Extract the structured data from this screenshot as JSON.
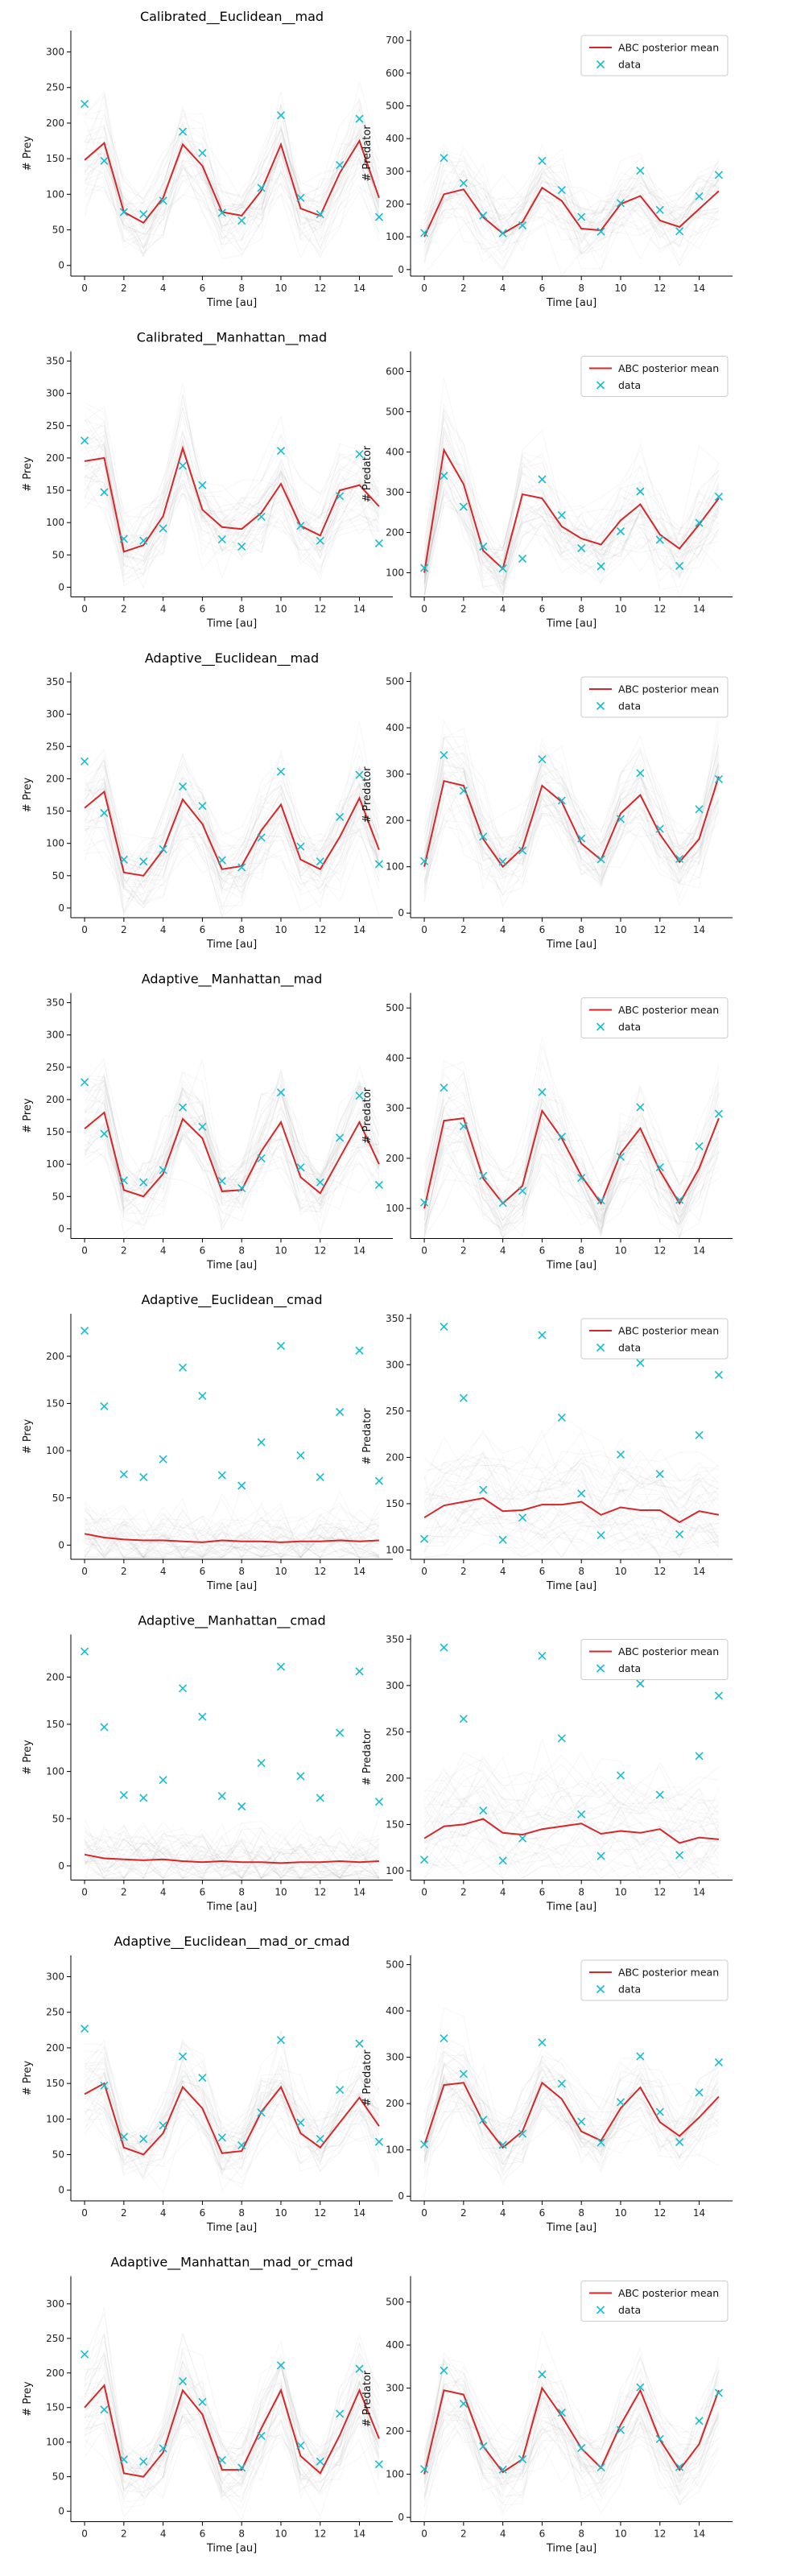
{
  "chart_data": {
    "type": "line",
    "x": [
      0,
      1,
      2,
      3,
      4,
      5,
      6,
      7,
      8,
      9,
      10,
      11,
      12,
      13,
      14,
      15
    ],
    "data_prey": [
      227,
      147,
      75,
      72,
      91,
      188,
      158,
      74,
      63,
      109,
      211,
      95,
      72,
      141,
      206,
      68
    ],
    "data_predator": [
      112,
      341,
      264,
      165,
      111,
      135,
      332,
      243,
      161,
      116,
      203,
      302,
      182,
      117,
      224,
      289
    ],
    "xlabel": "Time [au]",
    "xticks": [
      0,
      2,
      4,
      6,
      8,
      10,
      12,
      14
    ],
    "prey_ylabel": "# Prey",
    "predator_ylabel": "# Predator",
    "legend": {
      "mean_label": "ABC posterior mean",
      "data_label": "data",
      "placement": "upper-right"
    },
    "colors": {
      "mean": "#d62728",
      "data": "#17becf",
      "ensemble": "#9e9e9e",
      "axis": "#000000"
    },
    "grid": false,
    "panels": [
      {
        "title": "Calibrated__Euclidean__mad",
        "prey": {
          "ylim": [
            -15,
            330
          ],
          "yticks": [
            0,
            50,
            100,
            150,
            200,
            250,
            300
          ],
          "mean": [
            148,
            172,
            75,
            60,
            95,
            170,
            140,
            75,
            70,
            105,
            170,
            80,
            70,
            130,
            175,
            95
          ]
        },
        "predator": {
          "ylim": [
            -20,
            730
          ],
          "yticks": [
            0,
            100,
            200,
            300,
            400,
            500,
            600,
            700
          ],
          "mean": [
            100,
            230,
            245,
            160,
            110,
            145,
            250,
            210,
            125,
            120,
            200,
            225,
            150,
            130,
            185,
            240
          ]
        }
      },
      {
        "title": "Calibrated__Manhattan__mad",
        "prey": {
          "ylim": [
            -15,
            365
          ],
          "yticks": [
            0,
            50,
            100,
            150,
            200,
            250,
            300,
            350
          ],
          "mean": [
            195,
            200,
            55,
            65,
            110,
            215,
            120,
            93,
            90,
            115,
            160,
            95,
            80,
            150,
            158,
            125
          ]
        },
        "predator": {
          "ylim": [
            40,
            650
          ],
          "yticks": [
            100,
            200,
            300,
            400,
            500,
            600
          ],
          "mean": [
            100,
            405,
            320,
            155,
            110,
            295,
            285,
            215,
            185,
            170,
            230,
            270,
            195,
            160,
            220,
            285
          ]
        }
      },
      {
        "title": "Adaptive__Euclidean__mad",
        "prey": {
          "ylim": [
            -15,
            365
          ],
          "yticks": [
            0,
            50,
            100,
            150,
            200,
            250,
            300,
            350
          ],
          "mean": [
            155,
            180,
            55,
            50,
            90,
            168,
            130,
            60,
            65,
            120,
            160,
            75,
            60,
            110,
            170,
            90
          ]
        },
        "predator": {
          "ylim": [
            -10,
            520
          ],
          "yticks": [
            0,
            100,
            200,
            300,
            400,
            500
          ],
          "mean": [
            100,
            285,
            275,
            160,
            100,
            140,
            275,
            240,
            150,
            115,
            215,
            255,
            170,
            110,
            160,
            295
          ]
        }
      },
      {
        "title": "Adaptive__Manhattan__mad",
        "prey": {
          "ylim": [
            -15,
            365
          ],
          "yticks": [
            0,
            50,
            100,
            150,
            200,
            250,
            300,
            350
          ],
          "mean": [
            155,
            180,
            60,
            50,
            85,
            170,
            140,
            58,
            60,
            120,
            165,
            80,
            55,
            110,
            165,
            100
          ]
        },
        "predator": {
          "ylim": [
            40,
            530
          ],
          "yticks": [
            100,
            200,
            300,
            400,
            500
          ],
          "mean": [
            100,
            275,
            280,
            160,
            110,
            145,
            295,
            240,
            165,
            110,
            210,
            260,
            175,
            110,
            180,
            280
          ]
        }
      },
      {
        "title": "Adaptive__Euclidean__cmad",
        "prey": {
          "ylim": [
            -15,
            245
          ],
          "yticks": [
            0,
            50,
            100,
            150,
            200
          ],
          "mean": [
            12,
            8,
            6,
            5,
            5,
            4,
            3,
            5,
            4,
            4,
            3,
            4,
            4,
            5,
            4,
            5
          ]
        },
        "predator": {
          "ylim": [
            90,
            355
          ],
          "yticks": [
            100,
            150,
            200,
            250,
            300,
            350
          ],
          "mean": [
            135,
            148,
            152,
            156,
            142,
            143,
            149,
            149,
            152,
            138,
            146,
            143,
            143,
            130,
            142,
            138
          ]
        }
      },
      {
        "title": "Adaptive__Manhattan__cmad",
        "prey": {
          "ylim": [
            -15,
            245
          ],
          "yticks": [
            0,
            50,
            100,
            150,
            200
          ],
          "mean": [
            12,
            8,
            7,
            6,
            7,
            5,
            4,
            5,
            4,
            4,
            3,
            4,
            4,
            5,
            4,
            5
          ]
        },
        "predator": {
          "ylim": [
            90,
            355
          ],
          "yticks": [
            100,
            150,
            200,
            250,
            300,
            350
          ],
          "mean": [
            135,
            148,
            150,
            156,
            141,
            139,
            145,
            148,
            151,
            140,
            143,
            141,
            145,
            130,
            136,
            134
          ]
        }
      },
      {
        "title": "Adaptive__Euclidean__mad_or_cmad",
        "prey": {
          "ylim": [
            -15,
            330
          ],
          "yticks": [
            0,
            50,
            100,
            150,
            200,
            250,
            300
          ],
          "mean": [
            135,
            150,
            60,
            50,
            80,
            145,
            115,
            52,
            55,
            110,
            145,
            80,
            60,
            95,
            130,
            90
          ]
        },
        "predator": {
          "ylim": [
            -10,
            520
          ],
          "yticks": [
            0,
            100,
            200,
            300,
            400,
            500
          ],
          "mean": [
            110,
            240,
            245,
            160,
            105,
            140,
            245,
            210,
            140,
            120,
            190,
            235,
            160,
            130,
            170,
            215
          ]
        }
      },
      {
        "title": "Adaptive__Manhattan__mad_or_cmad",
        "prey": {
          "ylim": [
            -15,
            340
          ],
          "yticks": [
            0,
            50,
            100,
            150,
            200,
            250,
            300
          ],
          "mean": [
            150,
            182,
            55,
            50,
            85,
            175,
            140,
            60,
            60,
            120,
            175,
            80,
            55,
            110,
            175,
            105
          ]
        },
        "predator": {
          "ylim": [
            -10,
            560
          ],
          "yticks": [
            0,
            100,
            200,
            300,
            400,
            500
          ],
          "mean": [
            100,
            295,
            285,
            165,
            105,
            135,
            300,
            235,
            160,
            115,
            215,
            295,
            180,
            110,
            170,
            295
          ]
        }
      }
    ]
  }
}
